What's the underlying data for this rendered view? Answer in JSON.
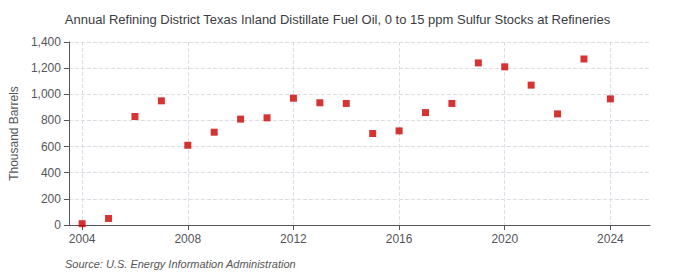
{
  "chart_data": {
    "type": "scatter",
    "title": "Annual Refining District Texas Inland Distillate Fuel Oil, 0 to 15 ppm Sulfur Stocks at Refineries",
    "ylabel": "Thousand Barrels",
    "annotations": [
      "Source: U.S. Energy Information Administration"
    ],
    "x": [
      2004,
      2005,
      2006,
      2007,
      2008,
      2009,
      2010,
      2011,
      2012,
      2013,
      2014,
      2015,
      2016,
      2017,
      2018,
      2019,
      2020,
      2021,
      2022,
      2023,
      2024
    ],
    "values": [
      10,
      50,
      830,
      950,
      610,
      710,
      810,
      820,
      970,
      935,
      930,
      700,
      720,
      860,
      930,
      1240,
      1210,
      1070,
      850,
      1270,
      965
    ],
    "color": "#cc0000",
    "marker": "square",
    "xlim": [
      2003.5,
      2025.5
    ],
    "xticks": [
      2004,
      2008,
      2012,
      2016,
      2020,
      2024
    ],
    "ylim": [
      0,
      1400
    ],
    "yticks": [
      0,
      200,
      400,
      600,
      800,
      {
        "value": 1000,
        "label": "1,000"
      },
      {
        "value": 1200,
        "label": "1,200"
      },
      {
        "value": 1400,
        "label": "1,400"
      }
    ],
    "grid": true
  }
}
